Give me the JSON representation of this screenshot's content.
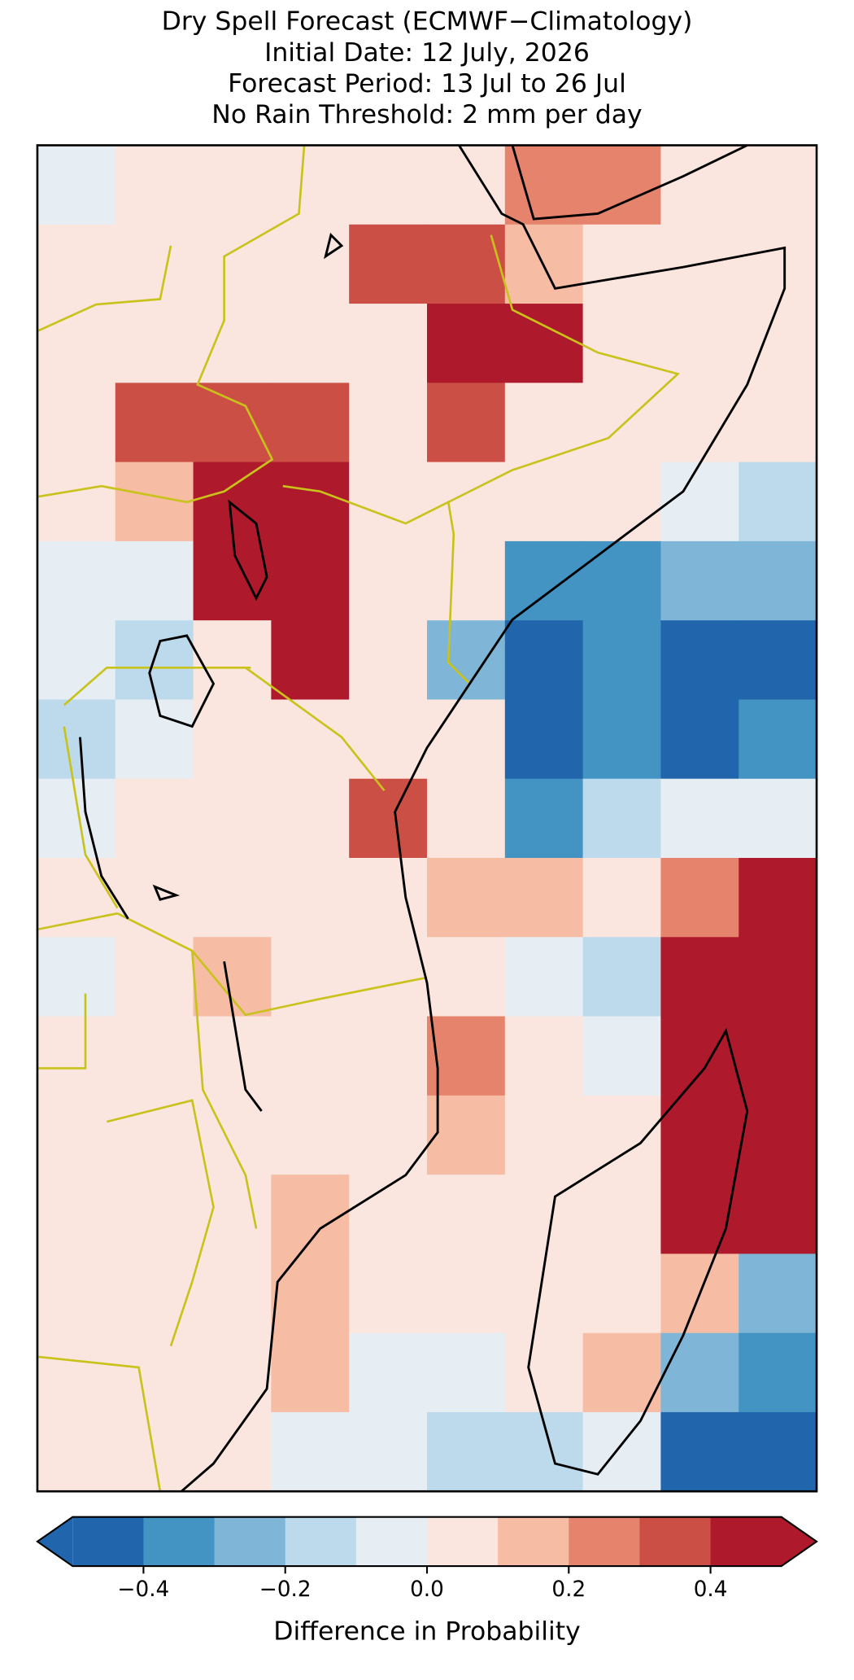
{
  "chart_data": {
    "type": "map",
    "title": [
      "Dry Spell Forecast (ECMWF−Climatology)",
      "Initial Date: 12 July, 2026",
      "Forecast Period: 13 Jul to 26 Jul",
      "No Rain Threshold: 2 mm per day"
    ],
    "levels": [
      -0.5,
      -0.4,
      -0.3,
      -0.2,
      -0.1,
      0,
      0.1,
      0.2,
      0.3,
      0.4,
      0.5
    ],
    "colors": [
      "#2166ac",
      "#4393c3",
      "#7fb6d8",
      "#bcdaeb",
      "#e6eef4",
      "#fae6de",
      "#f6bca4",
      "#e5836c",
      "#cc4f46",
      "#ae1a2c"
    ],
    "extend": "both",
    "cbar_ticks": [
      {
        "value": -0.4,
        "label": "−0.4"
      },
      {
        "value": -0.2,
        "label": "−0.2"
      },
      {
        "value": 0,
        "label": "0.0"
      },
      0.2,
      0.4
    ],
    "cbar_label": "Difference in Probability",
    "grid": [
      [
        -0.05,
        0.05,
        0.05,
        0.05,
        0.05,
        0.05,
        0.25,
        0.2,
        0.05,
        0.05
      ],
      [
        0.05,
        0.05,
        0.05,
        0.05,
        0.35,
        0.35,
        0.15,
        0.05,
        0.05,
        0.05
      ],
      [
        0.05,
        0.05,
        0.05,
        0.05,
        0.05,
        0.45,
        0.45,
        0.05,
        0.05,
        0.05
      ],
      [
        0.05,
        0.35,
        0.35,
        0.35,
        0.05,
        0.3,
        0.05,
        0.05,
        0.05,
        0.05
      ],
      [
        0.05,
        0.15,
        0.45,
        0.45,
        0.05,
        0.05,
        0.05,
        0.05,
        -0.05,
        -0.15
      ],
      [
        -0.05,
        -0.05,
        0.45,
        0.45,
        0.05,
        0.05,
        -0.35,
        -0.35,
        -0.25,
        -0.3
      ],
      [
        -0.05,
        -0.15,
        0.05,
        0.45,
        0.05,
        -0.25,
        -0.45,
        -0.35,
        -0.45,
        -0.45
      ],
      [
        -0.15,
        -0.05,
        0.05,
        0.05,
        0.05,
        0.05,
        -0.45,
        -0.35,
        -0.45,
        -0.35
      ],
      [
        -0.05,
        0.05,
        0.05,
        0.05,
        0.35,
        0.05,
        -0.35,
        -0.15,
        -0.05,
        -0.05
      ],
      [
        0.05,
        0.05,
        0.05,
        0.05,
        0.05,
        0.15,
        0.15,
        0.05,
        0.25,
        0.45
      ],
      [
        -0.05,
        0.05,
        0.15,
        0.05,
        0.05,
        0.05,
        -0.05,
        -0.15,
        0.45,
        0.45
      ],
      [
        0.05,
        0.05,
        0.05,
        0.05,
        0.05,
        0.25,
        0.05,
        -0.05,
        0.45,
        0.45
      ],
      [
        0.05,
        0.05,
        0.05,
        0.05,
        0.05,
        0.15,
        0.05,
        0.05,
        0.45,
        0.45
      ],
      [
        0.05,
        0.05,
        0.05,
        0.15,
        0.05,
        0.05,
        0.05,
        0.05,
        0.4,
        0.45
      ],
      [
        0.05,
        0.05,
        0.05,
        0.15,
        0.05,
        0.05,
        0.05,
        0.05,
        0.15,
        -0.25
      ],
      [
        0.05,
        0.05,
        0.05,
        0.15,
        -0.05,
        -0.05,
        0.05,
        0.15,
        -0.25,
        -0.35
      ],
      [
        0.05,
        0.05,
        0.05,
        -0.05,
        -0.05,
        -0.15,
        -0.15,
        -0.05,
        -0.45,
        -0.45
      ]
    ]
  }
}
